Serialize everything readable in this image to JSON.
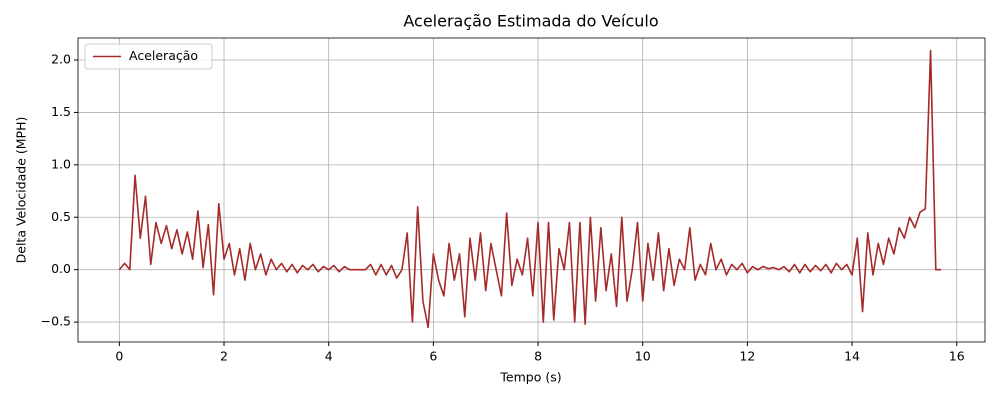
{
  "chart_data": {
    "type": "line",
    "title": "Aceleração Estimada do Veículo",
    "x_label": "Tempo (s)",
    "y_label": "Delta Velocidade (MPH)",
    "legend": "upper left",
    "grid": true,
    "xlim": [
      -0.79,
      16.54
    ],
    "ylim": [
      -0.69,
      2.21
    ],
    "xticks": [
      0,
      2,
      4,
      6,
      8,
      10,
      12,
      14,
      16
    ],
    "yticks": [
      {
        "value": -0.5,
        "label": "−0.5"
      },
      {
        "value": 0,
        "label": "0.0"
      },
      {
        "value": 0.5,
        "label": "0.5"
      },
      {
        "value": 1,
        "label": "1.0"
      },
      {
        "value": 1.5,
        "label": "1.5"
      },
      {
        "value": 2,
        "label": "2.0"
      }
    ],
    "x": [
      0.0,
      0.1,
      0.2,
      0.3,
      0.4,
      0.5,
      0.6,
      0.7,
      0.8,
      0.9,
      1.0,
      1.1,
      1.2,
      1.3,
      1.4,
      1.5,
      1.6,
      1.7,
      1.8,
      1.9,
      2.0,
      2.1,
      2.2,
      2.3,
      2.4,
      2.5,
      2.6,
      2.7,
      2.8,
      2.9,
      3.0,
      3.1,
      3.2,
      3.3,
      3.4,
      3.5,
      3.6,
      3.7,
      3.8,
      3.9,
      4.0,
      4.1,
      4.2,
      4.3,
      4.4,
      4.5,
      4.6,
      4.7,
      4.8,
      4.9,
      5.0,
      5.1,
      5.2,
      5.3,
      5.4,
      5.5,
      5.6,
      5.7,
      5.8,
      5.9,
      6.0,
      6.1,
      6.2,
      6.3,
      6.4,
      6.5,
      6.6,
      6.7,
      6.8,
      6.9,
      7.0,
      7.1,
      7.2,
      7.3,
      7.4,
      7.5,
      7.6,
      7.7,
      7.8,
      7.9,
      8.0,
      8.1,
      8.2,
      8.3,
      8.4,
      8.5,
      8.6,
      8.7,
      8.8,
      8.9,
      9.0,
      9.1,
      9.2,
      9.3,
      9.4,
      9.5,
      9.6,
      9.7,
      9.8,
      9.9,
      10.0,
      10.1,
      10.2,
      10.3,
      10.4,
      10.5,
      10.6,
      10.7,
      10.8,
      10.9,
      11.0,
      11.1,
      11.2,
      11.3,
      11.4,
      11.5,
      11.6,
      11.7,
      11.8,
      11.9,
      12.0,
      12.1,
      12.2,
      12.3,
      12.4,
      12.5,
      12.6,
      12.7,
      12.8,
      12.9,
      13.0,
      13.1,
      13.2,
      13.3,
      13.4,
      13.5,
      13.6,
      13.7,
      13.8,
      13.9,
      14.0,
      14.1,
      14.2,
      14.3,
      14.4,
      14.5,
      14.6,
      14.7,
      14.8,
      14.9,
      15.0,
      15.1,
      15.2,
      15.3,
      15.4,
      15.5,
      15.6,
      15.7
    ],
    "series": [
      {
        "name": "Aceleração",
        "color": "#a52a2a",
        "values": [
          0,
          0.06,
          0,
          0.9,
          0.3,
          0.7,
          0.05,
          0.45,
          0.25,
          0.42,
          0.2,
          0.38,
          0.15,
          0.36,
          0.1,
          0.56,
          0.02,
          0.43,
          -0.24,
          0.63,
          0.1,
          0.25,
          -0.05,
          0.2,
          -0.1,
          0.25,
          0,
          0.15,
          -0.05,
          0.1,
          0,
          0.06,
          -0.02,
          0.05,
          -0.03,
          0.04,
          0,
          0.05,
          -0.02,
          0.03,
          0,
          0.04,
          -0.02,
          0.03,
          0,
          0,
          0,
          0,
          0.05,
          -0.05,
          0.05,
          -0.05,
          0.04,
          -0.08,
          0,
          0.35,
          -0.5,
          0.6,
          -0.3,
          -0.55,
          0.15,
          -0.1,
          -0.25,
          0.25,
          -0.1,
          0.15,
          -0.45,
          0.3,
          -0.1,
          0.35,
          -0.2,
          0.25,
          0,
          -0.25,
          0.54,
          -0.15,
          0.1,
          -0.05,
          0.3,
          -0.25,
          0.45,
          -0.5,
          0.45,
          -0.48,
          0.2,
          0,
          0.45,
          -0.5,
          0.45,
          -0.52,
          0.5,
          -0.3,
          0.4,
          -0.2,
          0.15,
          -0.35,
          0.5,
          -0.3,
          0,
          0.45,
          -0.3,
          0.25,
          -0.1,
          0.35,
          -0.2,
          0.2,
          -0.15,
          0.1,
          0,
          0.4,
          -0.1,
          0.05,
          -0.05,
          0.25,
          0,
          0.1,
          -0.05,
          0.05,
          0,
          0.06,
          -0.03,
          0.03,
          0,
          0.03,
          0.01,
          0.02,
          0,
          0.03,
          -0.02,
          0.05,
          -0.03,
          0.05,
          -0.02,
          0.04,
          -0.01,
          0.05,
          -0.03,
          0.06,
          0,
          0.05,
          -0.05,
          0.3,
          -0.4,
          0.35,
          -0.05,
          0.25,
          0.05,
          0.3,
          0.15,
          0.4,
          0.3,
          0.5,
          0.4,
          0.55,
          0.58,
          2.09,
          0,
          0
        ]
      }
    ]
  }
}
